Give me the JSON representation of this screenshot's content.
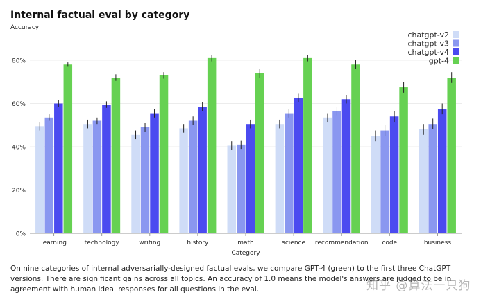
{
  "chart_data": {
    "type": "bar",
    "title": "Internal factual eval by category",
    "ylabel": "Accuracy",
    "xlabel": "Category",
    "ylim": [
      0,
      0.9
    ],
    "yticks": [
      0,
      0.2,
      0.4,
      0.6,
      0.8
    ],
    "ytick_labels": [
      "0%",
      "20%",
      "40%",
      "60%",
      "80%"
    ],
    "categories": [
      "learning",
      "technology",
      "writing",
      "history",
      "math",
      "science",
      "recommendation",
      "code",
      "business"
    ],
    "series": [
      {
        "name": "chatgpt-v2",
        "color": "#cfdcf7",
        "values": [
          0.495,
          0.505,
          0.455,
          0.485,
          0.405,
          0.505,
          0.535,
          0.45,
          0.48
        ],
        "errors": [
          0.02,
          0.02,
          0.02,
          0.02,
          0.02,
          0.02,
          0.02,
          0.025,
          0.025
        ]
      },
      {
        "name": "chatgpt-v3",
        "color": "#8a97f0",
        "values": [
          0.535,
          0.52,
          0.49,
          0.52,
          0.41,
          0.555,
          0.565,
          0.475,
          0.505
        ],
        "errors": [
          0.015,
          0.015,
          0.02,
          0.02,
          0.02,
          0.02,
          0.02,
          0.025,
          0.025
        ]
      },
      {
        "name": "chatgpt-v4",
        "color": "#4b4bf0",
        "values": [
          0.6,
          0.595,
          0.555,
          0.585,
          0.505,
          0.625,
          0.62,
          0.54,
          0.575
        ],
        "errors": [
          0.015,
          0.015,
          0.02,
          0.02,
          0.02,
          0.02,
          0.02,
          0.025,
          0.025
        ]
      },
      {
        "name": "gpt-4",
        "color": "#66d152",
        "values": [
          0.78,
          0.72,
          0.73,
          0.81,
          0.74,
          0.81,
          0.78,
          0.675,
          0.72
        ],
        "errors": [
          0.01,
          0.015,
          0.015,
          0.015,
          0.02,
          0.015,
          0.02,
          0.025,
          0.025
        ]
      }
    ],
    "legend": "top-right",
    "grid": true
  },
  "caption": "On nine categories of internal adversarially-designed factual evals, we compare GPT-4 (green) to the first three ChatGPT versions. There are significant gains across all topics. An accuracy of 1.0 means the model's answers are judged to be in agreement with human ideal responses for all questions in the eval.",
  "watermark": "知乎 @算法一只狗"
}
